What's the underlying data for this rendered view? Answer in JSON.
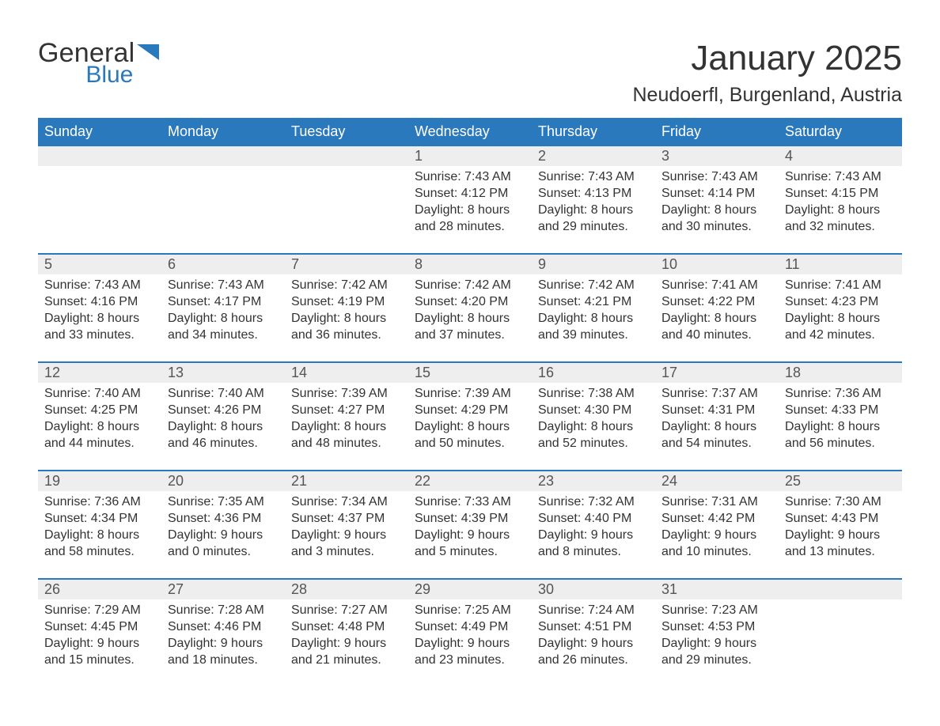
{
  "logo": {
    "word1": "General",
    "word2": "Blue",
    "arrow_color": "#2b79bd"
  },
  "title": "January 2025",
  "location": "Neudoerfl, Burgenland, Austria",
  "colors": {
    "header_bg": "#2b79bd",
    "header_text": "#ffffff",
    "row_stripe": "#eeeeee",
    "border": "#2b79bd",
    "text": "#333333",
    "muted": "#555555",
    "page_bg": "#ffffff"
  },
  "day_names": [
    "Sunday",
    "Monday",
    "Tuesday",
    "Wednesday",
    "Thursday",
    "Friday",
    "Saturday"
  ],
  "weeks": [
    [
      null,
      null,
      null,
      {
        "n": "1",
        "sunrise": "7:43 AM",
        "sunset": "4:12 PM",
        "dl1": "8 hours",
        "dl2": "28 minutes."
      },
      {
        "n": "2",
        "sunrise": "7:43 AM",
        "sunset": "4:13 PM",
        "dl1": "8 hours",
        "dl2": "29 minutes."
      },
      {
        "n": "3",
        "sunrise": "7:43 AM",
        "sunset": "4:14 PM",
        "dl1": "8 hours",
        "dl2": "30 minutes."
      },
      {
        "n": "4",
        "sunrise": "7:43 AM",
        "sunset": "4:15 PM",
        "dl1": "8 hours",
        "dl2": "32 minutes."
      }
    ],
    [
      {
        "n": "5",
        "sunrise": "7:43 AM",
        "sunset": "4:16 PM",
        "dl1": "8 hours",
        "dl2": "33 minutes."
      },
      {
        "n": "6",
        "sunrise": "7:43 AM",
        "sunset": "4:17 PM",
        "dl1": "8 hours",
        "dl2": "34 minutes."
      },
      {
        "n": "7",
        "sunrise": "7:42 AM",
        "sunset": "4:19 PM",
        "dl1": "8 hours",
        "dl2": "36 minutes."
      },
      {
        "n": "8",
        "sunrise": "7:42 AM",
        "sunset": "4:20 PM",
        "dl1": "8 hours",
        "dl2": "37 minutes."
      },
      {
        "n": "9",
        "sunrise": "7:42 AM",
        "sunset": "4:21 PM",
        "dl1": "8 hours",
        "dl2": "39 minutes."
      },
      {
        "n": "10",
        "sunrise": "7:41 AM",
        "sunset": "4:22 PM",
        "dl1": "8 hours",
        "dl2": "40 minutes."
      },
      {
        "n": "11",
        "sunrise": "7:41 AM",
        "sunset": "4:23 PM",
        "dl1": "8 hours",
        "dl2": "42 minutes."
      }
    ],
    [
      {
        "n": "12",
        "sunrise": "7:40 AM",
        "sunset": "4:25 PM",
        "dl1": "8 hours",
        "dl2": "44 minutes."
      },
      {
        "n": "13",
        "sunrise": "7:40 AM",
        "sunset": "4:26 PM",
        "dl1": "8 hours",
        "dl2": "46 minutes."
      },
      {
        "n": "14",
        "sunrise": "7:39 AM",
        "sunset": "4:27 PM",
        "dl1": "8 hours",
        "dl2": "48 minutes."
      },
      {
        "n": "15",
        "sunrise": "7:39 AM",
        "sunset": "4:29 PM",
        "dl1": "8 hours",
        "dl2": "50 minutes."
      },
      {
        "n": "16",
        "sunrise": "7:38 AM",
        "sunset": "4:30 PM",
        "dl1": "8 hours",
        "dl2": "52 minutes."
      },
      {
        "n": "17",
        "sunrise": "7:37 AM",
        "sunset": "4:31 PM",
        "dl1": "8 hours",
        "dl2": "54 minutes."
      },
      {
        "n": "18",
        "sunrise": "7:36 AM",
        "sunset": "4:33 PM",
        "dl1": "8 hours",
        "dl2": "56 minutes."
      }
    ],
    [
      {
        "n": "19",
        "sunrise": "7:36 AM",
        "sunset": "4:34 PM",
        "dl1": "8 hours",
        "dl2": "58 minutes."
      },
      {
        "n": "20",
        "sunrise": "7:35 AM",
        "sunset": "4:36 PM",
        "dl1": "9 hours",
        "dl2": "0 minutes."
      },
      {
        "n": "21",
        "sunrise": "7:34 AM",
        "sunset": "4:37 PM",
        "dl1": "9 hours",
        "dl2": "3 minutes."
      },
      {
        "n": "22",
        "sunrise": "7:33 AM",
        "sunset": "4:39 PM",
        "dl1": "9 hours",
        "dl2": "5 minutes."
      },
      {
        "n": "23",
        "sunrise": "7:32 AM",
        "sunset": "4:40 PM",
        "dl1": "9 hours",
        "dl2": "8 minutes."
      },
      {
        "n": "24",
        "sunrise": "7:31 AM",
        "sunset": "4:42 PM",
        "dl1": "9 hours",
        "dl2": "10 minutes."
      },
      {
        "n": "25",
        "sunrise": "7:30 AM",
        "sunset": "4:43 PM",
        "dl1": "9 hours",
        "dl2": "13 minutes."
      }
    ],
    [
      {
        "n": "26",
        "sunrise": "7:29 AM",
        "sunset": "4:45 PM",
        "dl1": "9 hours",
        "dl2": "15 minutes."
      },
      {
        "n": "27",
        "sunrise": "7:28 AM",
        "sunset": "4:46 PM",
        "dl1": "9 hours",
        "dl2": "18 minutes."
      },
      {
        "n": "28",
        "sunrise": "7:27 AM",
        "sunset": "4:48 PM",
        "dl1": "9 hours",
        "dl2": "21 minutes."
      },
      {
        "n": "29",
        "sunrise": "7:25 AM",
        "sunset": "4:49 PM",
        "dl1": "9 hours",
        "dl2": "23 minutes."
      },
      {
        "n": "30",
        "sunrise": "7:24 AM",
        "sunset": "4:51 PM",
        "dl1": "9 hours",
        "dl2": "26 minutes."
      },
      {
        "n": "31",
        "sunrise": "7:23 AM",
        "sunset": "4:53 PM",
        "dl1": "9 hours",
        "dl2": "29 minutes."
      },
      null
    ]
  ],
  "labels": {
    "sunrise_prefix": "Sunrise: ",
    "sunset_prefix": "Sunset: ",
    "daylight_prefix": "Daylight: ",
    "and": "and "
  }
}
